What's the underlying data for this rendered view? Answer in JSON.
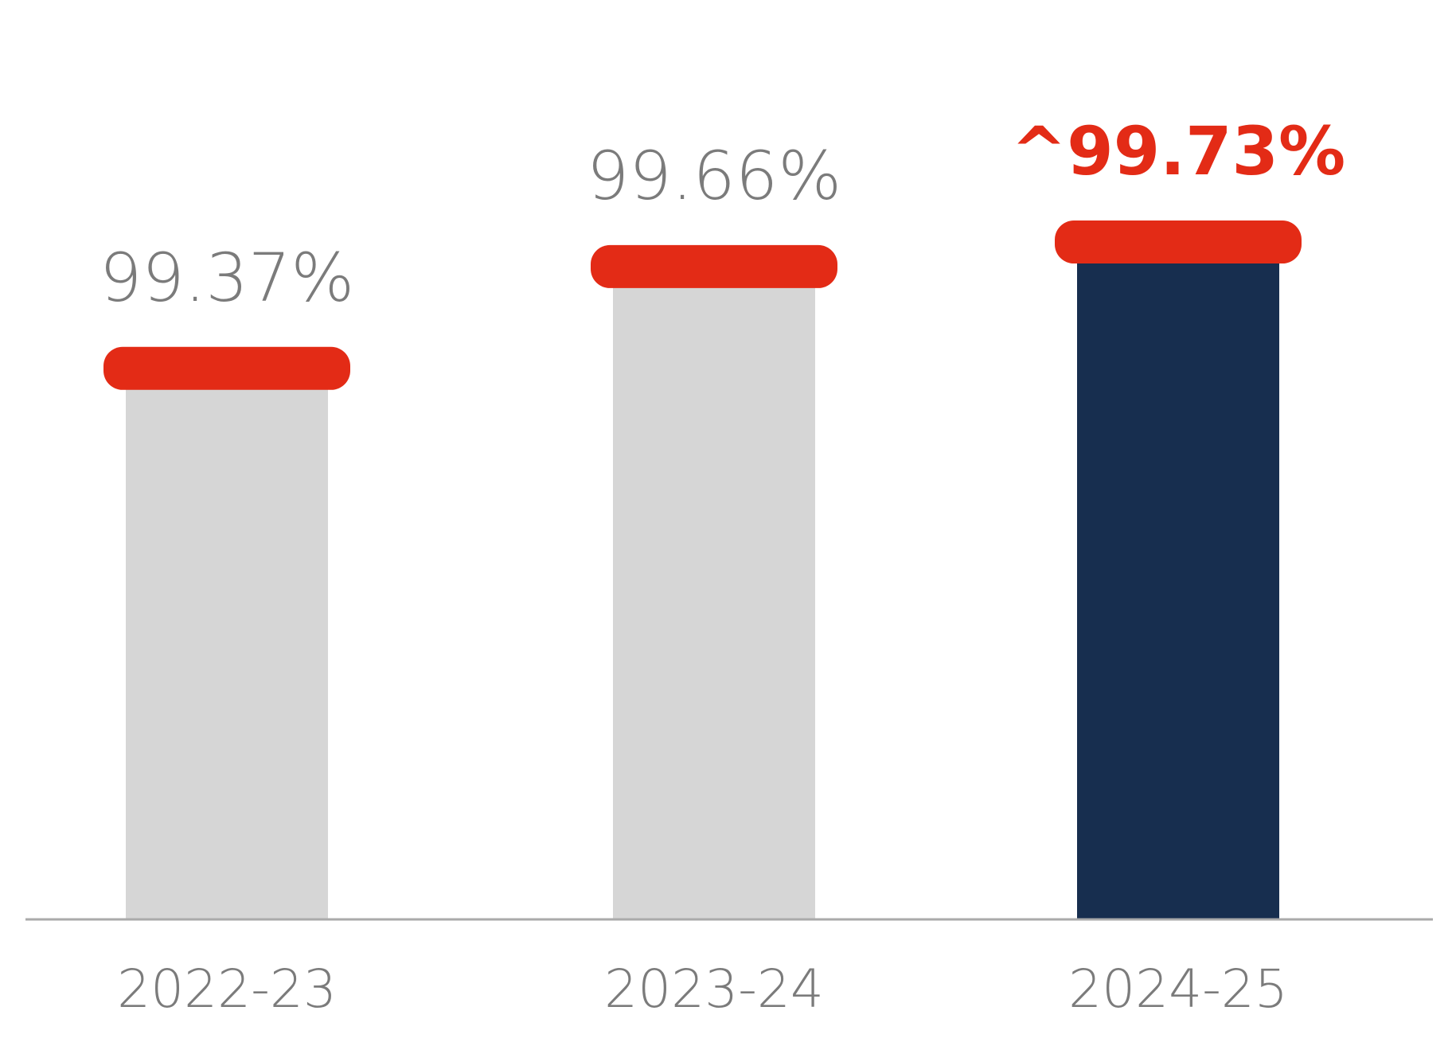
{
  "chart_data": {
    "type": "bar",
    "categories": [
      "2022-23",
      "2023-24",
      "2024-25"
    ],
    "values": [
      99.37,
      99.66,
      99.73
    ],
    "value_labels": [
      "99.37%",
      "99.66%",
      "^99.73%"
    ],
    "highlighted_index": 2,
    "ylim": [
      97.8,
      100
    ],
    "grid": false,
    "legend": "none",
    "title": "",
    "xlabel": "",
    "ylabel": ""
  },
  "colors": {
    "bar_default": "#d6d6d6",
    "bar_highlight": "#172e4f",
    "cap": "#e32b16",
    "label_default": "#7b7b7b",
    "label_highlight": "#e32b16",
    "axis": "#aaaaaa",
    "tick_label": "#7b7b7b"
  }
}
